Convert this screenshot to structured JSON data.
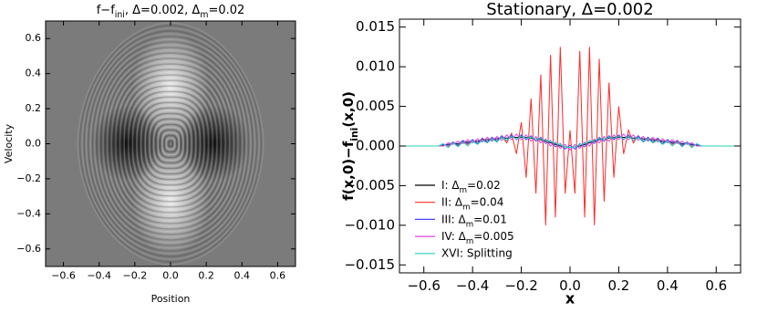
{
  "chart_data": [
    {
      "type": "image",
      "title": [
        {
          "text": "f−f"
        },
        {
          "sub": "ini"
        },
        {
          "text": ",  Δ=0.002,  Δ"
        },
        {
          "sub": "m"
        },
        {
          "text": "=0.02"
        }
      ],
      "xlabel": "Position",
      "ylabel": "Velocity",
      "xlim": [
        -0.7,
        0.7
      ],
      "ylim": [
        -0.7,
        0.7
      ],
      "xticks": [
        {
          "value": -0.6,
          "label": "−0.6"
        },
        {
          "value": -0.4,
          "label": "−0.4"
        },
        {
          "value": -0.2,
          "label": "−0.2"
        },
        {
          "value": 0,
          "label": "0.0"
        },
        {
          "value": 0.2,
          "label": "0.2"
        },
        {
          "value": 0.4,
          "label": "0.4"
        },
        {
          "value": 0.6,
          "label": "0.6"
        }
      ],
      "yticks": [
        {
          "value": -0.6,
          "label": "−0.6"
        },
        {
          "value": -0.4,
          "label": "−0.4"
        },
        {
          "value": -0.2,
          "label": "−0.2"
        },
        {
          "value": 0,
          "label": "0.0"
        },
        {
          "value": 0.2,
          "label": "0.2"
        },
        {
          "value": 0.4,
          "label": "0.4"
        },
        {
          "value": 0.6,
          "label": "0.6"
        }
      ]
    },
    {
      "type": "line",
      "title": "Stationary, Δ=0.002",
      "xlabel": "x",
      "ylabel": [
        {
          "text": "f(x,0)−f"
        },
        {
          "sub": "ini"
        },
        {
          "text": "(x,0)"
        }
      ],
      "xlim": [
        -0.7,
        0.7
      ],
      "ylim": [
        -0.016,
        0.016
      ],
      "xticks": [
        {
          "value": -0.6,
          "label": "−0.6"
        },
        {
          "value": -0.4,
          "label": "−0.4"
        },
        {
          "value": -0.2,
          "label": "−0.2"
        },
        {
          "value": 0,
          "label": "0.0"
        },
        {
          "value": 0.2,
          "label": "0.2"
        },
        {
          "value": 0.4,
          "label": "0.4"
        },
        {
          "value": 0.6,
          "label": "0.6"
        }
      ],
      "yticks": [
        {
          "value": -0.015,
          "label": "−0.015"
        },
        {
          "value": -0.01,
          "label": "−0.010"
        },
        {
          "value": -0.005,
          "label": "−0.005"
        },
        {
          "value": 0,
          "label": "0.000"
        },
        {
          "value": 0.005,
          "label": "0.005"
        },
        {
          "value": 0.01,
          "label": "0.010"
        },
        {
          "value": 0.015,
          "label": "0.015"
        }
      ],
      "legend": "lower left",
      "x": [
        -0.7,
        -0.54,
        -0.52,
        -0.5,
        -0.48,
        -0.46,
        -0.44,
        -0.42,
        -0.4,
        -0.38,
        -0.36,
        -0.34,
        -0.32,
        -0.3,
        -0.28,
        -0.26,
        -0.24,
        -0.22,
        -0.2,
        -0.18,
        -0.16,
        -0.14,
        -0.12,
        -0.1,
        -0.08,
        -0.06,
        -0.04,
        -0.02,
        0,
        0.02,
        0.04,
        0.06,
        0.08,
        0.1,
        0.12,
        0.14,
        0.16,
        0.18,
        0.2,
        0.22,
        0.24,
        0.26,
        0.28,
        0.3,
        0.32,
        0.34,
        0.36,
        0.38,
        0.4,
        0.42,
        0.44,
        0.46,
        0.48,
        0.5,
        0.52,
        0.54,
        0.7
      ],
      "series": [
        {
          "name": [
            {
              "text": "I:  Δ"
            },
            {
              "sub": "m"
            },
            {
              "text": "=0.02"
            }
          ],
          "color": "#000000",
          "values": [
            null,
            0,
            0.0001,
            0.0002,
            0.0003,
            0.0003,
            0.0004,
            0.0005,
            0.0005,
            0.0006,
            0.0007,
            0.0008,
            0.0008,
            0.0009,
            0.001,
            0.001,
            0.0011,
            0.0011,
            0.0011,
            0.0011,
            0.001,
            0.0009,
            0.0008,
            0.0006,
            0.0004,
            0.0002,
            0,
            -0.0001,
            -0.0002,
            -0.0001,
            0,
            0.0002,
            0.0004,
            0.0006,
            0.0008,
            0.0009,
            0.001,
            0.0011,
            0.0011,
            0.0011,
            0.0011,
            0.001,
            0.001,
            0.0009,
            0.0008,
            0.0008,
            0.0007,
            0.0006,
            0.0005,
            0.0005,
            0.0004,
            0.0003,
            0.0003,
            0.0002,
            0.0001,
            0,
            null
          ]
        },
        {
          "name": [
            {
              "text": "II:  Δ"
            },
            {
              "sub": "m"
            },
            {
              "text": "=0.04"
            }
          ],
          "color": "#ff2a2a",
          "values": [
            null,
            0,
            0.0002,
            -0.0001,
            0.0005,
            0,
            0.0006,
            0.0002,
            0.0008,
            0.0003,
            0.0009,
            0.0004,
            0.0011,
            0.0005,
            0.0013,
            0.0004,
            0.0016,
            -0.001,
            0.003,
            -0.004,
            0.006,
            -0.006,
            0.009,
            -0.01,
            0.0115,
            -0.009,
            0.0125,
            -0.006,
            0.002,
            -0.006,
            0.012,
            -0.009,
            0.0125,
            -0.01,
            0.011,
            -0.007,
            0.008,
            -0.004,
            0.005,
            -0.001,
            0.002,
            0.0004,
            0.0013,
            0.0005,
            0.0011,
            0.0004,
            0.0009,
            0.0003,
            0.0008,
            0.0002,
            0.0006,
            0,
            0.0005,
            -0.0001,
            0.0002,
            0,
            null
          ]
        },
        {
          "name": [
            {
              "text": "III:  Δ"
            },
            {
              "sub": "m"
            },
            {
              "text": "=0.01"
            }
          ],
          "color": "#4545ff",
          "values": [
            null,
            0,
            0.0002,
            0.0001,
            0.0005,
            0.0001,
            0.0007,
            0.0003,
            0.0008,
            0.0003,
            0.001,
            0.0005,
            0.0011,
            0.0006,
            0.0013,
            0.0007,
            0.0014,
            0.0008,
            0.0014,
            0.0008,
            0.0013,
            0.0006,
            0.0011,
            0.0003,
            0.0007,
            -0.0001,
            0.0003,
            -0.0004,
            0.0001,
            -0.0004,
            0.0003,
            -0.0001,
            0.0007,
            0.0003,
            0.0011,
            0.0006,
            0.0013,
            0.0008,
            0.0014,
            0.0008,
            0.0014,
            0.0007,
            0.0013,
            0.0006,
            0.0011,
            0.0005,
            0.001,
            0.0003,
            0.0008,
            0.0003,
            0.0007,
            0.0001,
            0.0005,
            0.0001,
            0.0002,
            0,
            null
          ]
        },
        {
          "name": [
            {
              "text": "IV:  Δ"
            },
            {
              "sub": "m"
            },
            {
              "text": "=0.005"
            }
          ],
          "color": "#e040e0",
          "values": [
            null,
            0,
            0,
            0.0004,
            0.0002,
            0.0006,
            0.0003,
            0.0008,
            0.0004,
            0.0009,
            0.0005,
            0.0011,
            0.0006,
            0.0012,
            0.0007,
            0.0014,
            0.0008,
            0.0015,
            0.0008,
            0.0014,
            0.0006,
            0.0012,
            0.0004,
            0.0009,
            0,
            0.0005,
            -0.0003,
            0.0002,
            -0.0005,
            0.0002,
            -0.0003,
            0.0005,
            0,
            0.0009,
            0.0004,
            0.0012,
            0.0006,
            0.0014,
            0.0008,
            0.0015,
            0.0008,
            0.0014,
            0.0007,
            0.0012,
            0.0006,
            0.0011,
            0.0005,
            0.0009,
            0.0004,
            0.0008,
            0.0003,
            0.0006,
            0.0002,
            0.0004,
            0,
            0,
            null
          ]
        },
        {
          "name": "XVI:  Splitting",
          "color": "#22d4b4",
          "values": [
            0,
            0,
            0.0003,
            -0.0002,
            0.0004,
            -0.0001,
            0.0005,
            0,
            0.0006,
            0.0002,
            0.0007,
            0.0004,
            0.0009,
            0.0005,
            0.0011,
            0.0007,
            0.0012,
            0.0009,
            0.0012,
            0.001,
            0.0011,
            0.0009,
            0.0009,
            0.0007,
            0.0006,
            0.0003,
            0.0002,
            -0.0001,
            -0.0002,
            -0.0001,
            0.0002,
            0.0003,
            0.0006,
            0.0007,
            0.0009,
            0.0009,
            0.0011,
            0.001,
            0.0012,
            0.0009,
            0.0012,
            0.0007,
            0.0011,
            0.0005,
            0.0009,
            0.0004,
            0.0007,
            0.0002,
            0.0006,
            0,
            0.0005,
            -0.0001,
            0.0004,
            -0.0002,
            0.0003,
            0,
            0
          ]
        }
      ]
    }
  ]
}
